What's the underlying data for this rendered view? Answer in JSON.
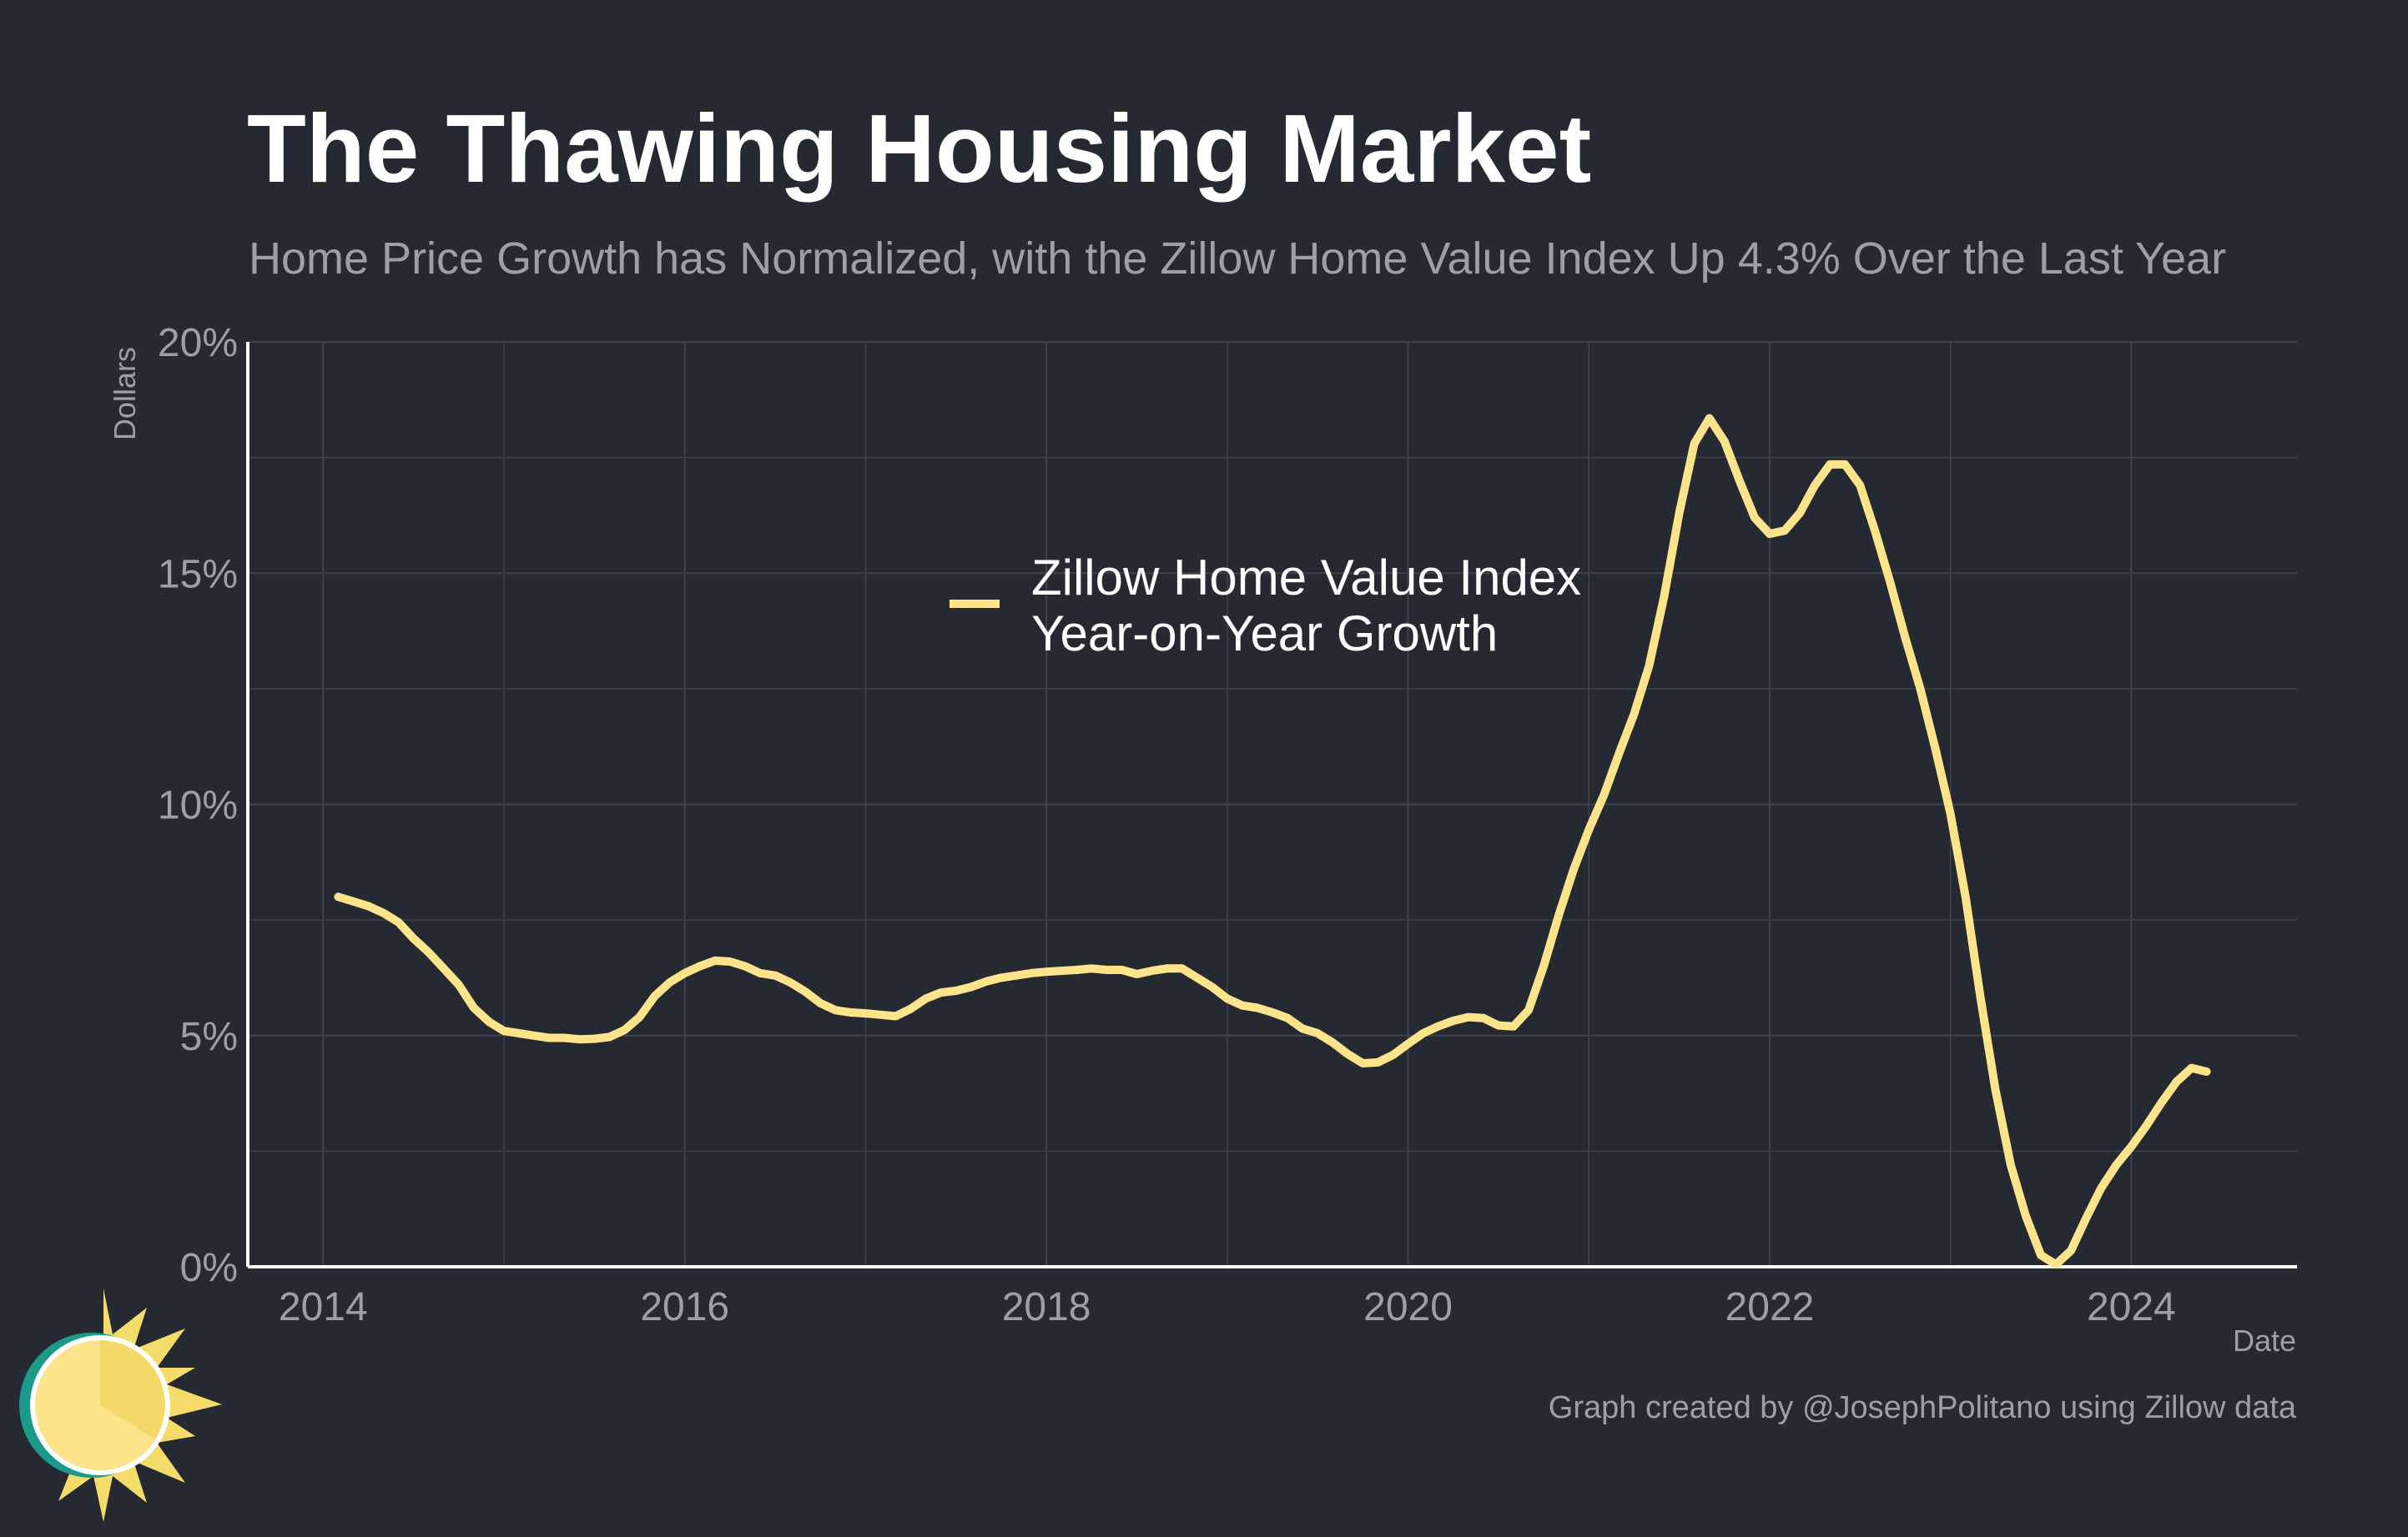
{
  "colors": {
    "background": "#252932",
    "title": "#ffffff",
    "subtitle": "#9aa0a8",
    "axis_text": "#9aa0a8",
    "grid": "#3e434d",
    "axis_line": "#ffffff",
    "series": "#fde38a",
    "legend_text": "#ffffff",
    "logo_teal": "#1a9a8a",
    "logo_sun": "#fde38a",
    "logo_rays": "#f5dc6a"
  },
  "logo": {
    "icon": "sun-logo-icon"
  },
  "chart_data": {
    "type": "line",
    "title": "The Thawing Housing Market",
    "subtitle": "Home Price Growth has Normalized, with the Zillow Home Value Index Up 4.3% Over the Last Year",
    "xlabel": "Date",
    "ylabel": "Dollars",
    "caption": "Graph created by @JosephPolitano using Zillow data",
    "xlim": [
      "2013-08",
      "2024-12"
    ],
    "ylim": [
      0,
      20
    ],
    "x_ticks": [
      "2014",
      "2016",
      "2018",
      "2020",
      "2022",
      "2024"
    ],
    "y_ticks": [
      "0%",
      "5%",
      "10%",
      "15%",
      "20%"
    ],
    "grid": true,
    "legend_placement": "center",
    "series": [
      {
        "name": "Zillow Home Value Index\nYear-on-Year Growth",
        "color": "#fde38a",
        "x": [
          "2014-02",
          "2014-03",
          "2014-04",
          "2014-05",
          "2014-06",
          "2014-07",
          "2014-08",
          "2014-09",
          "2014-10",
          "2014-11",
          "2014-12",
          "2015-01",
          "2015-02",
          "2015-03",
          "2015-04",
          "2015-05",
          "2015-06",
          "2015-07",
          "2015-08",
          "2015-09",
          "2015-10",
          "2015-11",
          "2015-12",
          "2016-01",
          "2016-02",
          "2016-03",
          "2016-04",
          "2016-05",
          "2016-06",
          "2016-07",
          "2016-08",
          "2016-09",
          "2016-10",
          "2016-11",
          "2016-12",
          "2017-01",
          "2017-02",
          "2017-03",
          "2017-04",
          "2017-05",
          "2017-06",
          "2017-07",
          "2017-08",
          "2017-09",
          "2017-10",
          "2017-11",
          "2017-12",
          "2018-01",
          "2018-02",
          "2018-03",
          "2018-04",
          "2018-05",
          "2018-06",
          "2018-07",
          "2018-08",
          "2018-09",
          "2018-10",
          "2018-11",
          "2018-12",
          "2019-01",
          "2019-02",
          "2019-03",
          "2019-04",
          "2019-05",
          "2019-06",
          "2019-07",
          "2019-08",
          "2019-09",
          "2019-10",
          "2019-11",
          "2019-12",
          "2020-01",
          "2020-02",
          "2020-03",
          "2020-04",
          "2020-05",
          "2020-06",
          "2020-07",
          "2020-08",
          "2020-09",
          "2020-10",
          "2020-11",
          "2020-12",
          "2021-01",
          "2021-02",
          "2021-03",
          "2021-04",
          "2021-05",
          "2021-06",
          "2021-07",
          "2021-08",
          "2021-09",
          "2021-10",
          "2021-11",
          "2021-12",
          "2022-01",
          "2022-02",
          "2022-03",
          "2022-04",
          "2022-05",
          "2022-06",
          "2022-07",
          "2022-08",
          "2022-09",
          "2022-10",
          "2022-11",
          "2022-12",
          "2023-01",
          "2023-02",
          "2023-03",
          "2023-04",
          "2023-05",
          "2023-06",
          "2023-07",
          "2023-08",
          "2023-09",
          "2023-10",
          "2023-11",
          "2023-12",
          "2024-01",
          "2024-02",
          "2024-03",
          "2024-04",
          "2024-05",
          "2024-06"
        ],
        "values": [
          8.0,
          7.9,
          7.8,
          7.65,
          7.45,
          7.1,
          6.8,
          6.45,
          6.1,
          5.6,
          5.3,
          5.1,
          5.05,
          5.0,
          4.95,
          4.95,
          4.92,
          4.93,
          4.97,
          5.12,
          5.4,
          5.85,
          6.15,
          6.35,
          6.5,
          6.62,
          6.6,
          6.5,
          6.35,
          6.3,
          6.15,
          5.95,
          5.7,
          5.55,
          5.5,
          5.48,
          5.45,
          5.42,
          5.58,
          5.8,
          5.93,
          5.97,
          6.05,
          6.17,
          6.25,
          6.3,
          6.35,
          6.38,
          6.4,
          6.42,
          6.45,
          6.42,
          6.42,
          6.33,
          6.4,
          6.45,
          6.45,
          6.25,
          6.05,
          5.8,
          5.65,
          5.6,
          5.5,
          5.38,
          5.15,
          5.05,
          4.85,
          4.6,
          4.4,
          4.42,
          4.58,
          4.82,
          5.05,
          5.2,
          5.32,
          5.4,
          5.38,
          5.22,
          5.2,
          5.55,
          6.5,
          7.6,
          8.6,
          9.45,
          10.2,
          11.1,
          11.95,
          13.0,
          14.5,
          16.3,
          17.8,
          18.35,
          17.85,
          17.0,
          16.2,
          15.85,
          15.92,
          16.3,
          16.9,
          17.35,
          17.35,
          16.9,
          15.9,
          14.8,
          13.6,
          12.5,
          11.2,
          9.8,
          8.0,
          5.8,
          3.8,
          2.2,
          1.1,
          0.25,
          0.05,
          0.35,
          1.05,
          1.7,
          2.2,
          2.6,
          3.05,
          3.55,
          4.0,
          4.3,
          4.22
        ]
      }
    ]
  }
}
